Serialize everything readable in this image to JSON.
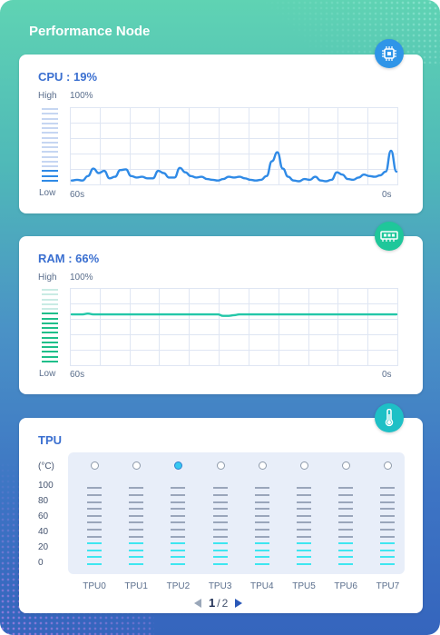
{
  "title": "Performance Node",
  "cpu": {
    "title": "CPU : 19%",
    "usage_percent": 19,
    "high_label": "High",
    "low_label": "Low",
    "max_label": "100%",
    "x_start": "60s",
    "x_end": "0s",
    "icon": "cpu-chip-icon",
    "color": "#2f8ae6"
  },
  "ram": {
    "title": "RAM : 66%",
    "usage_percent": 66,
    "high_label": "High",
    "low_label": "Low",
    "max_label": "100%",
    "x_start": "60s",
    "x_end": "0s",
    "icon": "memory-module-icon",
    "color": "#23c7a8"
  },
  "tpu": {
    "title": "TPU",
    "unit_label": "(°C)",
    "y_ticks": [
      "100",
      "80",
      "60",
      "40",
      "20",
      "0"
    ],
    "icon": "thermometer-icon",
    "units": [
      {
        "name": "TPU0",
        "selected": false,
        "temp_level": 0.3
      },
      {
        "name": "TPU1",
        "selected": false,
        "temp_level": 0.3
      },
      {
        "name": "TPU2",
        "selected": true,
        "temp_level": 0.3
      },
      {
        "name": "TPU3",
        "selected": false,
        "temp_level": 0.3
      },
      {
        "name": "TPU4",
        "selected": false,
        "temp_level": 0.3
      },
      {
        "name": "TPU5",
        "selected": false,
        "temp_level": 0.3
      },
      {
        "name": "TPU6",
        "selected": false,
        "temp_level": 0.3
      },
      {
        "name": "TPU7",
        "selected": false,
        "temp_level": 0.3
      }
    ],
    "page_current": "1",
    "page_separator": "/",
    "page_total": "2"
  },
  "chart_data": [
    {
      "type": "line",
      "title": "CPU : 19%",
      "xlabel": "",
      "ylabel": "",
      "x": [
        60,
        59,
        58,
        57,
        56,
        55,
        54,
        53,
        52,
        51,
        50,
        49,
        48,
        47,
        46,
        45,
        44,
        43,
        42,
        41,
        40,
        39,
        38,
        37,
        36,
        35,
        34,
        33,
        32,
        31,
        30,
        29,
        28,
        27,
        26,
        25,
        24,
        23,
        22,
        21,
        20,
        19,
        18,
        17,
        16,
        15,
        14,
        13,
        12,
        11,
        10,
        9,
        8,
        7,
        6,
        5,
        4,
        3,
        2,
        1,
        0
      ],
      "series": [
        {
          "values": [
            4,
            5,
            4,
            10,
            20,
            14,
            17,
            7,
            9,
            18,
            19,
            10,
            8,
            9,
            7,
            7,
            17,
            14,
            8,
            8,
            21,
            15,
            10,
            8,
            9,
            6,
            5,
            4,
            6,
            9,
            8,
            9,
            7,
            5,
            4,
            5,
            10,
            30,
            42,
            20,
            9,
            4,
            3,
            6,
            5,
            9,
            4,
            3,
            5,
            15,
            12,
            6,
            5,
            8,
            12,
            10,
            9,
            11,
            16,
            44,
            16
          ]
        }
      ],
      "xlim": [
        60,
        0
      ],
      "ylim": [
        0,
        100
      ],
      "grid": true
    },
    {
      "type": "line",
      "title": "RAM : 66%",
      "xlabel": "",
      "ylabel": "",
      "x": [
        60,
        59,
        58,
        57,
        56,
        55,
        54,
        53,
        52,
        51,
        50,
        49,
        48,
        47,
        46,
        45,
        44,
        43,
        42,
        41,
        40,
        39,
        38,
        37,
        36,
        35,
        34,
        33,
        32,
        31,
        30,
        29,
        28,
        27,
        26,
        25,
        24,
        23,
        22,
        21,
        20,
        19,
        18,
        17,
        16,
        15,
        14,
        13,
        12,
        11,
        10,
        9,
        8,
        7,
        6,
        5,
        4,
        3,
        2,
        1,
        0
      ],
      "series": [
        {
          "values": [
            67,
            67,
            67,
            68,
            67,
            67,
            67,
            67,
            67,
            67,
            67,
            67,
            67,
            67,
            67,
            67,
            67,
            67,
            67,
            67,
            67,
            67,
            67,
            67,
            67,
            67,
            67,
            67,
            65,
            65,
            66,
            67,
            67,
            67,
            67,
            67,
            67,
            67,
            67,
            67,
            67,
            67,
            67,
            67,
            67,
            67,
            67,
            67,
            67,
            67,
            67,
            67,
            67,
            67,
            67,
            67,
            67,
            67,
            67,
            67,
            67
          ]
        }
      ],
      "xlim": [
        60,
        0
      ],
      "ylim": [
        0,
        100
      ],
      "grid": true
    },
    {
      "type": "bar",
      "title": "TPU",
      "ylabel": "(°C)",
      "categories": [
        "TPU0",
        "TPU1",
        "TPU2",
        "TPU3",
        "TPU4",
        "TPU5",
        "TPU6",
        "TPU7"
      ],
      "values": [
        30,
        30,
        30,
        30,
        30,
        30,
        30,
        30
      ],
      "ylim": [
        0,
        100
      ]
    }
  ]
}
